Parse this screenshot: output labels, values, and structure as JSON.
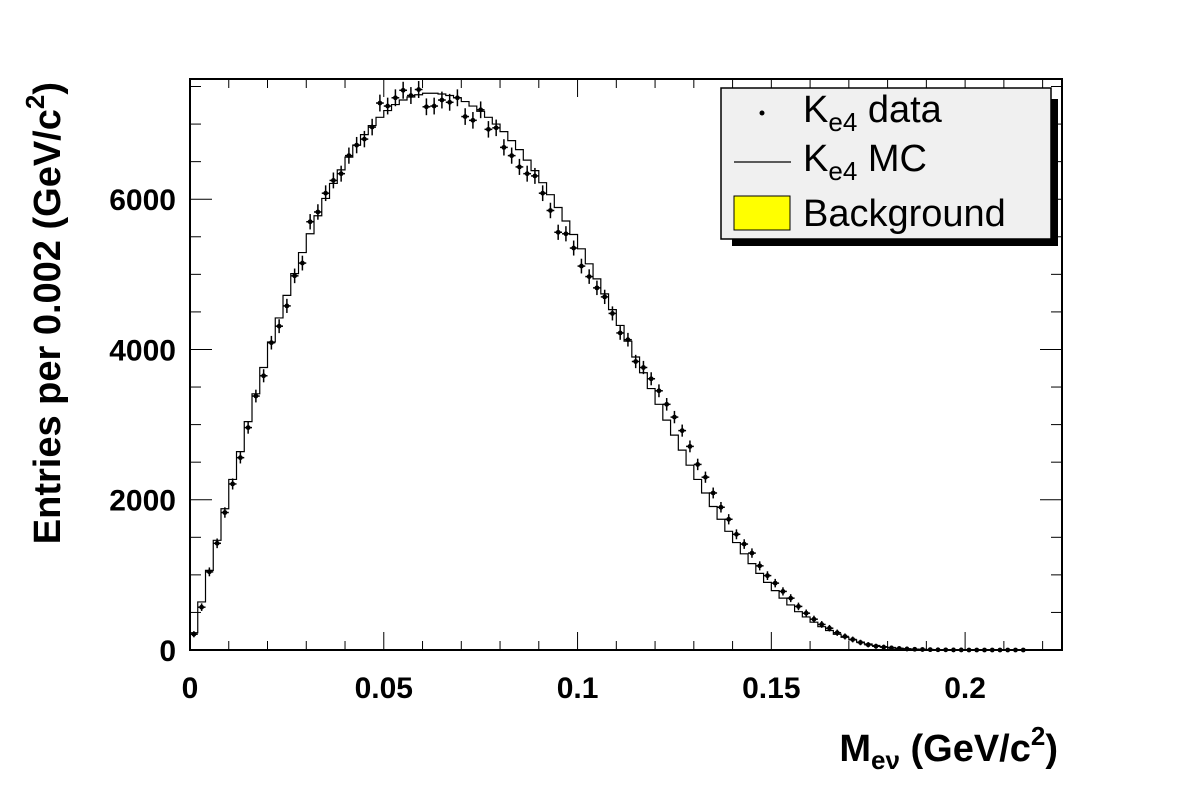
{
  "chart_data": {
    "type": "histogram",
    "xlim": [
      0,
      0.225
    ],
    "ylim": [
      0,
      7600
    ],
    "bin_width": 0.002,
    "x_ticks": [
      "0",
      "0.05",
      "0.1",
      "0.15",
      "0.2"
    ],
    "x_tick_values": [
      0,
      0.05,
      0.1,
      0.15,
      0.2
    ],
    "y_ticks": [
      "0",
      "2000",
      "4000",
      "6000"
    ],
    "y_tick_values": [
      0,
      2000,
      4000,
      6000
    ],
    "xlabel": {
      "main": "M",
      "sub": "eν",
      "rest": " (GeV/c",
      "sup": "2",
      "end": ")"
    },
    "ylabel": {
      "main": "Entries per 0.002 (GeV/c",
      "sup": "2",
      "end": ")"
    },
    "legend_position": "top-right",
    "legend": [
      {
        "kind": "marker",
        "name": "K",
        "sub": "e4",
        "rest": " data"
      },
      {
        "kind": "line",
        "name": "K",
        "sub": "e4",
        "rest": " MC"
      },
      {
        "kind": "fill",
        "name": "Background",
        "color": "#ffff00"
      }
    ],
    "series": [
      {
        "name": "Ke4 data",
        "style": "points",
        "x": [
          0.001,
          0.003,
          0.005,
          0.007,
          0.009,
          0.011,
          0.013,
          0.015,
          0.017,
          0.019,
          0.021,
          0.023,
          0.025,
          0.027,
          0.029,
          0.031,
          0.033,
          0.035,
          0.037,
          0.039,
          0.041,
          0.043,
          0.045,
          0.047,
          0.049,
          0.051,
          0.053,
          0.055,
          0.057,
          0.059,
          0.061,
          0.063,
          0.065,
          0.067,
          0.069,
          0.071,
          0.073,
          0.075,
          0.077,
          0.079,
          0.081,
          0.083,
          0.085,
          0.087,
          0.089,
          0.091,
          0.093,
          0.095,
          0.097,
          0.099,
          0.101,
          0.103,
          0.105,
          0.107,
          0.109,
          0.111,
          0.113,
          0.115,
          0.117,
          0.119,
          0.121,
          0.123,
          0.125,
          0.127,
          0.129,
          0.131,
          0.133,
          0.135,
          0.137,
          0.139,
          0.141,
          0.143,
          0.145,
          0.147,
          0.149,
          0.151,
          0.153,
          0.155,
          0.157,
          0.159,
          0.161,
          0.163,
          0.165,
          0.167,
          0.169,
          0.171,
          0.173,
          0.175,
          0.177,
          0.179,
          0.181,
          0.183,
          0.185,
          0.187,
          0.189,
          0.191,
          0.193,
          0.195,
          0.197,
          0.199,
          0.201,
          0.203,
          0.205,
          0.207,
          0.209,
          0.211,
          0.213,
          0.215
        ],
        "y": [
          210,
          570,
          1040,
          1420,
          1830,
          2210,
          2560,
          2960,
          3380,
          3650,
          4090,
          4310,
          4580,
          4980,
          5150,
          5700,
          5830,
          6080,
          6250,
          6340,
          6580,
          6720,
          6800,
          6960,
          7280,
          7240,
          7350,
          7450,
          7380,
          7460,
          7230,
          7240,
          7320,
          7290,
          7350,
          7100,
          7050,
          7190,
          6930,
          6950,
          6690,
          6580,
          6430,
          6340,
          6310,
          6080,
          5850,
          5560,
          5540,
          5350,
          5110,
          4970,
          4820,
          4700,
          4480,
          4220,
          4130,
          3840,
          3760,
          3610,
          3450,
          3270,
          3100,
          2920,
          2710,
          2470,
          2300,
          2090,
          1900,
          1740,
          1540,
          1410,
          1290,
          1120,
          990,
          890,
          780,
          690,
          580,
          490,
          410,
          340,
          290,
          230,
          180,
          140,
          100,
          70,
          50,
          38,
          28,
          20,
          14,
          10,
          7,
          5,
          3,
          2,
          1,
          1,
          0,
          0,
          0,
          0,
          0,
          0,
          0,
          0
        ]
      },
      {
        "name": "Ke4 MC",
        "style": "step",
        "x": [
          0.001,
          0.003,
          0.005,
          0.007,
          0.009,
          0.011,
          0.013,
          0.015,
          0.017,
          0.019,
          0.021,
          0.023,
          0.025,
          0.027,
          0.029,
          0.031,
          0.033,
          0.035,
          0.037,
          0.039,
          0.041,
          0.043,
          0.045,
          0.047,
          0.049,
          0.051,
          0.053,
          0.055,
          0.057,
          0.059,
          0.061,
          0.063,
          0.065,
          0.067,
          0.069,
          0.071,
          0.073,
          0.075,
          0.077,
          0.079,
          0.081,
          0.083,
          0.085,
          0.087,
          0.089,
          0.091,
          0.093,
          0.095,
          0.097,
          0.099,
          0.101,
          0.103,
          0.105,
          0.107,
          0.109,
          0.111,
          0.113,
          0.115,
          0.117,
          0.119,
          0.121,
          0.123,
          0.125,
          0.127,
          0.129,
          0.131,
          0.133,
          0.135,
          0.137,
          0.139,
          0.141,
          0.143,
          0.145,
          0.147,
          0.149,
          0.151,
          0.153,
          0.155,
          0.157,
          0.159,
          0.161,
          0.163,
          0.165,
          0.167,
          0.169,
          0.171,
          0.173,
          0.175,
          0.177,
          0.179,
          0.181,
          0.183,
          0.185,
          0.187,
          0.189,
          0.191,
          0.193,
          0.195,
          0.197,
          0.199,
          0.201,
          0.203,
          0.205,
          0.207,
          0.209,
          0.211,
          0.213,
          0.215
        ],
        "y": [
          230,
          640,
          1060,
          1460,
          1880,
          2270,
          2640,
          3040,
          3410,
          3760,
          4100,
          4420,
          4720,
          5010,
          5290,
          5540,
          5780,
          6010,
          6210,
          6390,
          6560,
          6720,
          6860,
          6980,
          7090,
          7180,
          7260,
          7320,
          7360,
          7390,
          7410,
          7410,
          7400,
          7380,
          7350,
          7300,
          7240,
          7170,
          7090,
          7000,
          6900,
          6780,
          6660,
          6520,
          6380,
          6220,
          6060,
          5890,
          5710,
          5530,
          5340,
          5140,
          4940,
          4740,
          4530,
          4320,
          4110,
          3900,
          3690,
          3480,
          3270,
          3060,
          2860,
          2660,
          2460,
          2270,
          2090,
          1910,
          1740,
          1580,
          1430,
          1280,
          1150,
          1020,
          900,
          790,
          690,
          600,
          510,
          440,
          370,
          310,
          260,
          210,
          170,
          135,
          105,
          80,
          60,
          45,
          33,
          24,
          17,
          12,
          8,
          5,
          3,
          2,
          1,
          1,
          0,
          0,
          0,
          0,
          0,
          0,
          0,
          0
        ]
      },
      {
        "name": "Background",
        "style": "filled-step",
        "x": [
          0.001,
          0.003,
          0.005,
          0.007,
          0.009,
          0.011,
          0.013,
          0.015,
          0.017,
          0.019,
          0.021,
          0.023,
          0.025,
          0.027,
          0.029,
          0.031,
          0.033,
          0.035,
          0.037,
          0.039,
          0.041,
          0.043,
          0.045,
          0.047,
          0.049,
          0.051,
          0.053,
          0.055,
          0.057,
          0.059,
          0.061,
          0.063,
          0.065,
          0.067,
          0.069,
          0.071,
          0.073,
          0.075,
          0.077,
          0.079,
          0.081,
          0.083,
          0.085,
          0.087,
          0.089,
          0.091,
          0.093,
          0.095,
          0.097,
          0.099,
          0.101,
          0.103,
          0.105,
          0.107,
          0.109,
          0.111,
          0.113,
          0.115,
          0.117,
          0.119,
          0.121,
          0.123,
          0.125,
          0.127,
          0.129,
          0.131,
          0.133,
          0.135,
          0.137,
          0.139,
          0.141,
          0.143,
          0.145,
          0.147,
          0.149,
          0.151,
          0.153,
          0.155,
          0.157,
          0.159,
          0.161,
          0.163,
          0.165,
          0.167,
          0.169,
          0.171,
          0.173,
          0.175,
          0.177,
          0.179,
          0.181,
          0.183,
          0.185,
          0.187,
          0.189,
          0.191,
          0.193,
          0.195,
          0.197,
          0.199,
          0.201,
          0.203,
          0.205,
          0.207,
          0.209,
          0.211,
          0.213,
          0.215
        ],
        "y": [
          0,
          0,
          0,
          0,
          0,
          0,
          0,
          0,
          0,
          0,
          0,
          0,
          0,
          0,
          0,
          0,
          0,
          0,
          0,
          0,
          0,
          0,
          0,
          0,
          0,
          0,
          0,
          0,
          0,
          0,
          0,
          0,
          0,
          0,
          0,
          0,
          0,
          0,
          0,
          0,
          0,
          0,
          0,
          0,
          0,
          0,
          0,
          0,
          0,
          0,
          0,
          0,
          0,
          0,
          0,
          0,
          0,
          0,
          0,
          0,
          0,
          0,
          0,
          0,
          0,
          0,
          0,
          0,
          0,
          0,
          0,
          0,
          0,
          0,
          0,
          0,
          0,
          0,
          0,
          0,
          0,
          0,
          0,
          0,
          0,
          0,
          0,
          0,
          0,
          0,
          0,
          0,
          0,
          0,
          0,
          0,
          0,
          0,
          0,
          0,
          0,
          0,
          0,
          0,
          0,
          0,
          0,
          0
        ],
        "color": "#ffff00"
      }
    ]
  }
}
